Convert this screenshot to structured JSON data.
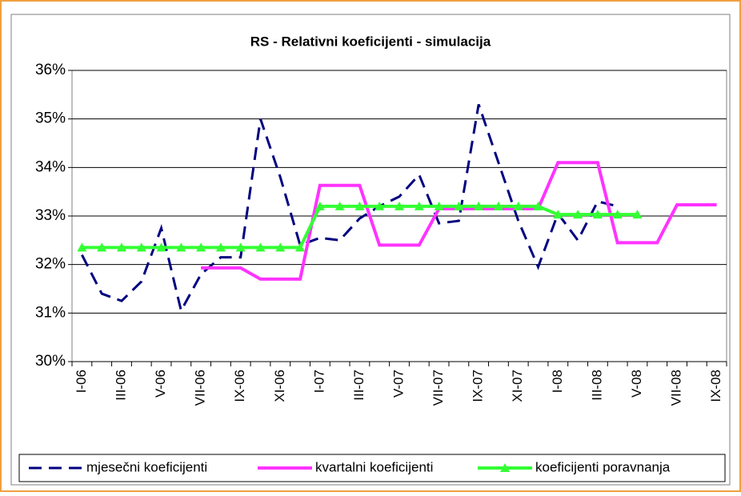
{
  "chart_data": {
    "type": "line",
    "title": "RS - Relativni koeficijenti - simulacija",
    "categories": [
      "I-06",
      null,
      "III-06",
      null,
      "V-06",
      null,
      "VII-06",
      null,
      "IX-06",
      null,
      "XI-06",
      null,
      "I-07",
      null,
      "III-07",
      null,
      "V-07",
      null,
      "VII-07",
      null,
      "IX-07",
      null,
      "XI-07",
      null,
      "I-08",
      null,
      "III-08",
      null,
      "V-08",
      null,
      "VII-08",
      null,
      "IX-08"
    ],
    "series": [
      {
        "name": "mjesečni koeficijenti",
        "color": "#000080",
        "dash": true,
        "values": [
          32.2,
          31.4,
          31.25,
          31.65,
          32.75,
          31.05,
          31.8,
          32.15,
          32.15,
          35.0,
          33.8,
          32.4,
          32.55,
          32.5,
          32.95,
          33.2,
          33.4,
          33.85,
          32.85,
          32.9,
          35.3,
          34.1,
          32.9,
          31.95,
          33.05,
          32.5,
          33.3,
          33.2,
          null,
          null,
          null,
          null,
          null
        ]
      },
      {
        "name": "kvartalni koeficijenti",
        "color": "#ff33ff",
        "values": [
          null,
          null,
          null,
          null,
          null,
          null,
          31.93,
          31.93,
          31.93,
          31.7,
          31.7,
          31.7,
          33.63,
          33.63,
          33.63,
          32.4,
          32.4,
          32.4,
          33.15,
          33.15,
          33.15,
          33.15,
          33.15,
          33.15,
          34.1,
          34.1,
          34.1,
          32.45,
          32.45,
          32.45,
          33.23,
          33.23,
          33.23
        ]
      },
      {
        "name": "koeficijenti poravnanja",
        "color": "#33ff33",
        "marker": "triangle",
        "values": [
          32.35,
          32.35,
          32.35,
          32.35,
          32.35,
          32.35,
          32.35,
          32.35,
          32.35,
          32.35,
          32.35,
          32.35,
          33.2,
          33.2,
          33.2,
          33.2,
          33.2,
          33.2,
          33.2,
          33.2,
          33.2,
          33.2,
          33.2,
          33.2,
          33.03,
          33.03,
          33.03,
          33.03,
          33.03,
          null,
          null,
          null,
          null
        ]
      }
    ],
    "ylim": [
      30,
      36
    ],
    "yticks": [
      {
        "value": 30,
        "label": "30%"
      },
      {
        "value": 31,
        "label": "31%"
      },
      {
        "value": 32,
        "label": "32%"
      },
      {
        "value": 33,
        "label": "33%"
      },
      {
        "value": 34,
        "label": "34%"
      },
      {
        "value": 35,
        "label": "35%"
      },
      {
        "value": 36,
        "label": "36%"
      }
    ],
    "grid": true,
    "legend": "bottom"
  }
}
